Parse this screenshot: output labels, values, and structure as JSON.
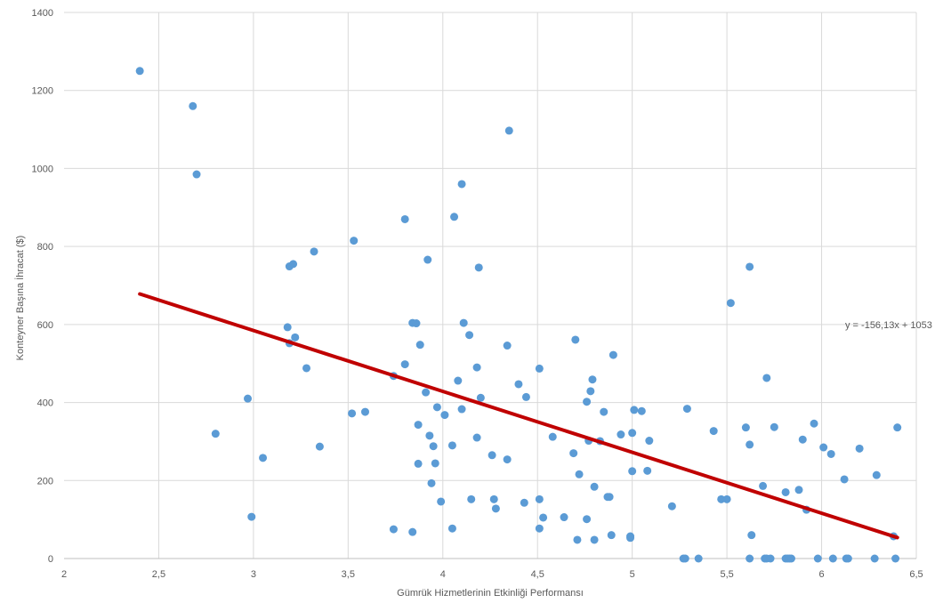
{
  "chart_data": {
    "type": "scatter",
    "xlabel": "Gümrük Hizmetlerinin Etkinliği Performansı",
    "ylabel": "Konteyner Başına İhracat ($)",
    "xlim": [
      2,
      6.5
    ],
    "ylim": [
      0,
      1400
    ],
    "x_ticks": [
      "2",
      "2,5",
      "3",
      "3,5",
      "4",
      "4,5",
      "5",
      "5,5",
      "6",
      "6,5"
    ],
    "x_tick_values": [
      2,
      2.5,
      3,
      3.5,
      4,
      4.5,
      5,
      5.5,
      6,
      6.5
    ],
    "y_ticks": [
      "0",
      "200",
      "400",
      "600",
      "800",
      "1000",
      "1200",
      "1400"
    ],
    "y_tick_values": [
      0,
      200,
      400,
      600,
      800,
      1000,
      1200,
      1400
    ],
    "grid": true,
    "marker_color": "#5b9bd5",
    "trendline": {
      "label": "y = -156,13x + 1053",
      "slope": -156.13,
      "intercept": 1053,
      "x_range": [
        2.4,
        6.4
      ],
      "color": "#c00000"
    },
    "points": [
      [
        2.4,
        1250
      ],
      [
        2.68,
        1160
      ],
      [
        2.7,
        985
      ],
      [
        2.8,
        320
      ],
      [
        2.97,
        410
      ],
      [
        2.99,
        107
      ],
      [
        3.05,
        258
      ],
      [
        3.18,
        593
      ],
      [
        3.19,
        552
      ],
      [
        3.19,
        749
      ],
      [
        3.21,
        755
      ],
      [
        3.22,
        567
      ],
      [
        3.28,
        488
      ],
      [
        3.32,
        787
      ],
      [
        3.35,
        287
      ],
      [
        3.52,
        372
      ],
      [
        3.53,
        815
      ],
      [
        3.59,
        376
      ],
      [
        3.74,
        468
      ],
      [
        3.74,
        75
      ],
      [
        3.8,
        498
      ],
      [
        3.8,
        870
      ],
      [
        3.84,
        604
      ],
      [
        3.84,
        68
      ],
      [
        3.86,
        603
      ],
      [
        3.87,
        343
      ],
      [
        3.87,
        243
      ],
      [
        3.88,
        548
      ],
      [
        3.91,
        426
      ],
      [
        3.92,
        766
      ],
      [
        3.93,
        315
      ],
      [
        3.94,
        193
      ],
      [
        3.95,
        288
      ],
      [
        3.96,
        244
      ],
      [
        3.97,
        388
      ],
      [
        3.99,
        146
      ],
      [
        4.01,
        368
      ],
      [
        4.05,
        290
      ],
      [
        4.05,
        77
      ],
      [
        4.06,
        876
      ],
      [
        4.08,
        456
      ],
      [
        4.1,
        960
      ],
      [
        4.1,
        383
      ],
      [
        4.11,
        604
      ],
      [
        4.14,
        573
      ],
      [
        4.15,
        152
      ],
      [
        4.18,
        490
      ],
      [
        4.18,
        310
      ],
      [
        4.19,
        746
      ],
      [
        4.2,
        412
      ],
      [
        4.26,
        265
      ],
      [
        4.27,
        152
      ],
      [
        4.28,
        128
      ],
      [
        4.34,
        546
      ],
      [
        4.34,
        254
      ],
      [
        4.35,
        1097
      ],
      [
        4.4,
        447
      ],
      [
        4.43,
        143
      ],
      [
        4.44,
        414
      ],
      [
        4.51,
        487
      ],
      [
        4.51,
        152
      ],
      [
        4.51,
        77
      ],
      [
        4.53,
        105
      ],
      [
        4.58,
        312
      ],
      [
        4.64,
        106
      ],
      [
        4.69,
        270
      ],
      [
        4.7,
        561
      ],
      [
        4.71,
        48
      ],
      [
        4.72,
        216
      ],
      [
        4.76,
        101
      ],
      [
        4.76,
        402
      ],
      [
        4.77,
        302
      ],
      [
        4.78,
        429
      ],
      [
        4.79,
        459
      ],
      [
        4.8,
        184
      ],
      [
        4.8,
        48
      ],
      [
        4.83,
        301
      ],
      [
        4.85,
        376
      ],
      [
        4.87,
        158
      ],
      [
        4.88,
        158
      ],
      [
        4.89,
        60
      ],
      [
        4.9,
        522
      ],
      [
        4.94,
        318
      ],
      [
        4.99,
        57
      ],
      [
        4.99,
        53
      ],
      [
        5,
        322
      ],
      [
        5,
        224
      ],
      [
        5.01,
        381
      ],
      [
        5.05,
        378
      ],
      [
        5.08,
        225
      ],
      [
        5.09,
        302
      ],
      [
        5.21,
        134
      ],
      [
        5.27,
        0
      ],
      [
        5.28,
        0
      ],
      [
        5.29,
        384
      ],
      [
        5.35,
        0
      ],
      [
        5.43,
        327
      ],
      [
        5.47,
        152
      ],
      [
        5.5,
        152
      ],
      [
        5.52,
        655
      ],
      [
        5.6,
        336
      ],
      [
        5.62,
        748
      ],
      [
        5.62,
        292
      ],
      [
        5.62,
        0
      ],
      [
        5.63,
        60
      ],
      [
        5.69,
        186
      ],
      [
        5.7,
        0
      ],
      [
        5.71,
        463
      ],
      [
        5.71,
        0
      ],
      [
        5.73,
        0
      ],
      [
        5.75,
        337
      ],
      [
        5.81,
        170
      ],
      [
        5.81,
        0
      ],
      [
        5.82,
        0
      ],
      [
        5.83,
        0
      ],
      [
        5.84,
        0
      ],
      [
        5.88,
        176
      ],
      [
        5.9,
        305
      ],
      [
        5.92,
        125
      ],
      [
        5.96,
        346
      ],
      [
        5.98,
        0
      ],
      [
        6.01,
        285
      ],
      [
        6.05,
        268
      ],
      [
        6.06,
        0
      ],
      [
        6.12,
        203
      ],
      [
        6.13,
        0
      ],
      [
        6.14,
        0
      ],
      [
        6.2,
        282
      ],
      [
        6.28,
        0
      ],
      [
        6.29,
        214
      ],
      [
        6.38,
        57
      ],
      [
        6.39,
        0
      ],
      [
        6.4,
        336
      ]
    ]
  }
}
